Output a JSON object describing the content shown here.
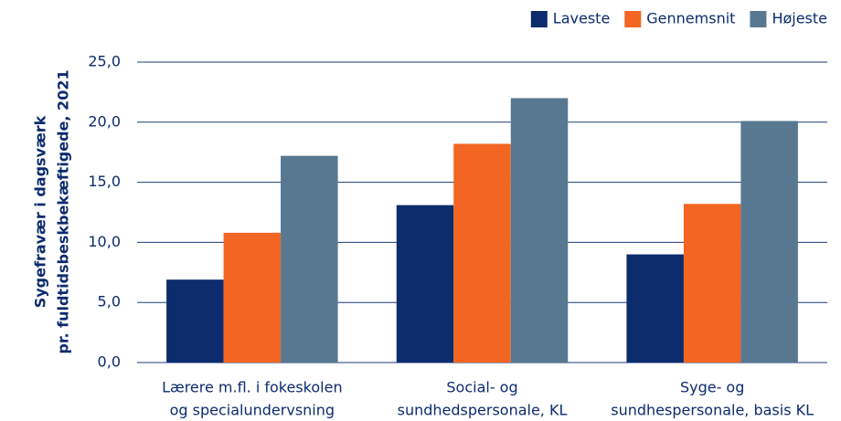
{
  "chart_data": {
    "type": "bar",
    "ylabel": [
      "Sygefravær i dagsværk",
      "pr. fuldtidsbeskbekæftigede, 2021"
    ],
    "categories": [
      [
        "Lærere m.fl. i fokeskolen",
        "og specialundervsning"
      ],
      [
        "Social- og",
        "sundhedspersonale, KL"
      ],
      [
        "Syge- og",
        "sundhespersonale, basis KL"
      ]
    ],
    "series": [
      {
        "name": "Laveste",
        "color": "#0c2c6e",
        "values": [
          6.9,
          13.1,
          9.0
        ]
      },
      {
        "name": "Gennemsnit",
        "color": "#f26522",
        "values": [
          10.8,
          18.2,
          13.2
        ]
      },
      {
        "name": "Højeste",
        "color": "#587891",
        "values": [
          17.2,
          22.0,
          20.1
        ]
      }
    ],
    "ylim": [
      0,
      25
    ],
    "yticks": [
      {
        "value": 0,
        "label": "0,0"
      },
      {
        "value": 5,
        "label": "5,0"
      },
      {
        "value": 10,
        "label": "10,0"
      },
      {
        "value": 15,
        "label": "15,0"
      },
      {
        "value": 20,
        "label": "20,0"
      },
      {
        "value": 25,
        "label": "25,0"
      }
    ],
    "grid": true,
    "legend": "top-right"
  }
}
